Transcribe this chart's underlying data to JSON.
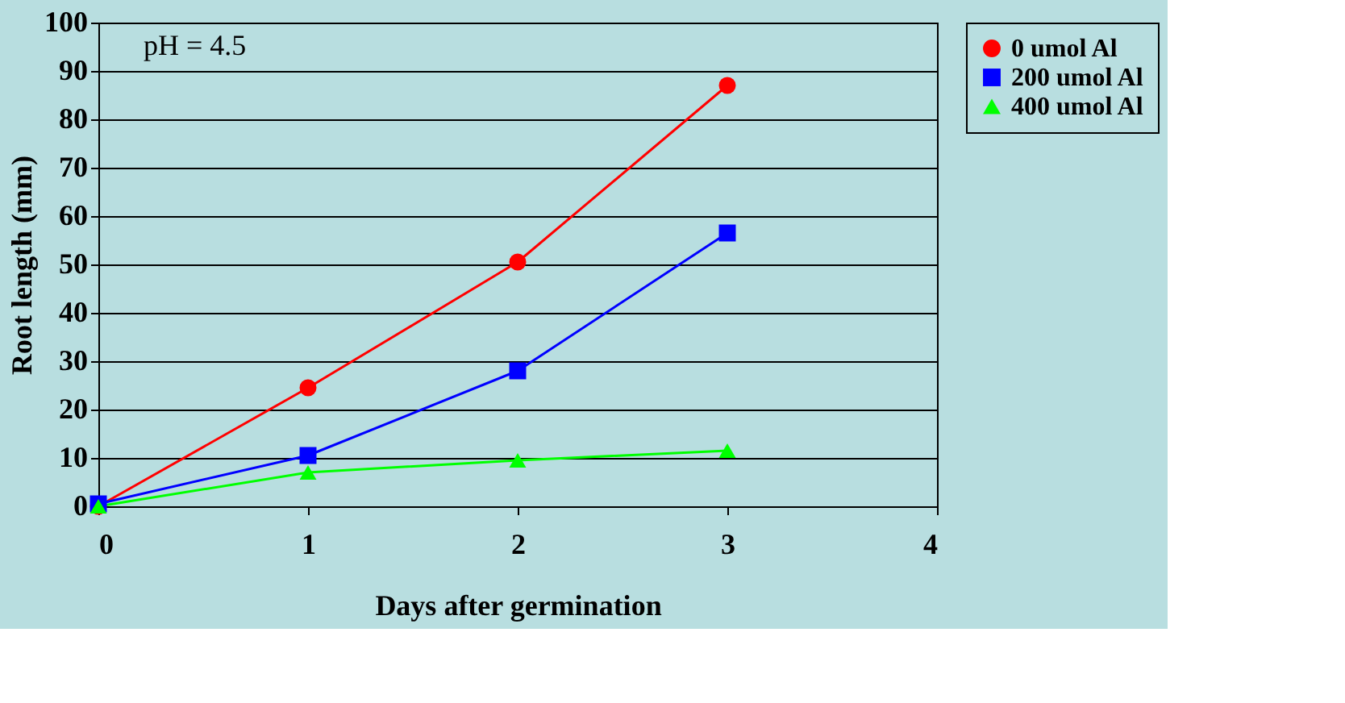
{
  "chart_data": {
    "type": "line",
    "xlabel": "Days after germination",
    "ylabel": "Root length (mm)",
    "annotations": [
      "pH = 4.5"
    ],
    "x": [
      0,
      1,
      2,
      3
    ],
    "series": [
      {
        "name": "0 umol Al",
        "color": "#ff0000",
        "marker": "circle",
        "values": [
          0,
          24.5,
          50.5,
          87
        ]
      },
      {
        "name": "200 umol Al",
        "color": "#0000ff",
        "marker": "square",
        "values": [
          0.5,
          10.5,
          28,
          56.5
        ]
      },
      {
        "name": "400 umol Al",
        "color": "#00ff00",
        "marker": "triangle",
        "values": [
          0,
          7,
          9.5,
          11.5
        ]
      }
    ],
    "xlim": [
      0,
      4
    ],
    "xticks": [
      0,
      1,
      2,
      3,
      4
    ],
    "ylim": [
      0,
      100
    ],
    "yticks": [
      0,
      10,
      20,
      30,
      40,
      50,
      60,
      70,
      80,
      90,
      100
    ],
    "grid": "y",
    "legend": "right",
    "line_style": "solid"
  }
}
